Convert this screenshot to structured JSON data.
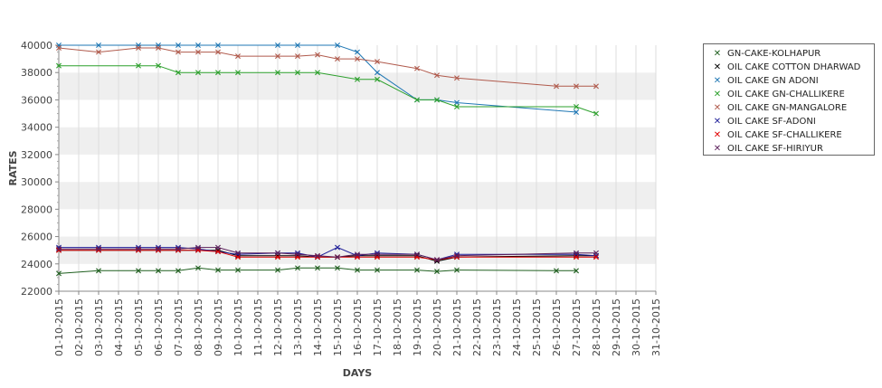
{
  "chart_data": {
    "type": "line",
    "xlabel": "DAYS",
    "ylabel": "RATES",
    "ylim": [
      22000,
      40000
    ],
    "yticks": [
      22000,
      24000,
      26000,
      28000,
      30000,
      32000,
      34000,
      36000,
      38000,
      40000
    ],
    "grid": "horizontal alternating bands",
    "legend_position": "right",
    "categories": [
      "01-10-2015",
      "02-10-2015",
      "03-10-2015",
      "04-10-2015",
      "05-10-2015",
      "06-10-2015",
      "07-10-2015",
      "08-10-2015",
      "09-10-2015",
      "10-10-2015",
      "11-10-2015",
      "12-10-2015",
      "13-10-2015",
      "14-10-2015",
      "15-10-2015",
      "16-10-2015",
      "17-10-2015",
      "18-10-2015",
      "19-10-2015",
      "20-10-2015",
      "21-10-2015",
      "22-10-2015",
      "23-10-2015",
      "24-10-2015",
      "25-10-2015",
      "26-10-2015",
      "27-10-2015",
      "28-10-2015",
      "29-10-2015",
      "30-10-2015",
      "31-10-2015"
    ],
    "series": [
      {
        "name": "GN-CAKE-KOLHAPUR",
        "color": "#1f5f1f",
        "points": [
          [
            1,
            23300
          ],
          [
            3,
            23500
          ],
          [
            5,
            23500
          ],
          [
            6,
            23500
          ],
          [
            7,
            23500
          ],
          [
            8,
            23700
          ],
          [
            9,
            23550
          ],
          [
            10,
            23550
          ],
          [
            12,
            23550
          ],
          [
            13,
            23700
          ],
          [
            14,
            23700
          ],
          [
            15,
            23700
          ],
          [
            16,
            23550
          ],
          [
            17,
            23550
          ],
          [
            19,
            23550
          ],
          [
            20,
            23450
          ],
          [
            21,
            23550
          ],
          [
            26,
            23500
          ],
          [
            27,
            23500
          ]
        ]
      },
      {
        "name": "OIL CAKE COTTON DHARWAD",
        "color": "#000000",
        "points": [
          [
            1,
            25000
          ],
          [
            3,
            25000
          ],
          [
            5,
            25000
          ],
          [
            6,
            25000
          ],
          [
            7,
            25000
          ],
          [
            8,
            25000
          ],
          [
            9,
            25000
          ],
          [
            10,
            24600
          ],
          [
            12,
            24600
          ],
          [
            13,
            24600
          ],
          [
            14,
            24500
          ],
          [
            15,
            24500
          ],
          [
            16,
            24600
          ],
          [
            17,
            24600
          ],
          [
            19,
            24600
          ],
          [
            20,
            24200
          ],
          [
            21,
            24500
          ],
          [
            27,
            24600
          ],
          [
            28,
            24600
          ]
        ]
      },
      {
        "name": "OIL CAKE GN ADONI",
        "color": "#1f77b4",
        "points": [
          [
            1,
            40000
          ],
          [
            3,
            40000
          ],
          [
            5,
            40000
          ],
          [
            6,
            40000
          ],
          [
            7,
            40000
          ],
          [
            8,
            40000
          ],
          [
            9,
            40000
          ],
          [
            12,
            40000
          ],
          [
            13,
            40000
          ],
          [
            15,
            40000
          ],
          [
            16,
            39500
          ],
          [
            17,
            38000
          ],
          [
            19,
            36000
          ],
          [
            20,
            36000
          ],
          [
            21,
            35800
          ],
          [
            27,
            35100
          ]
        ]
      },
      {
        "name": "OIL CAKE GN-CHALLIKERE",
        "color": "#2ca02c",
        "points": [
          [
            1,
            38500
          ],
          [
            5,
            38500
          ],
          [
            6,
            38500
          ],
          [
            7,
            38000
          ],
          [
            8,
            38000
          ],
          [
            9,
            38000
          ],
          [
            10,
            38000
          ],
          [
            12,
            38000
          ],
          [
            13,
            38000
          ],
          [
            14,
            38000
          ],
          [
            16,
            37500
          ],
          [
            17,
            37500
          ],
          [
            19,
            36000
          ],
          [
            20,
            36000
          ],
          [
            21,
            35500
          ],
          [
            27,
            35500
          ],
          [
            28,
            35000
          ]
        ]
      },
      {
        "name": "OIL CAKE GN-MANGALORE",
        "color": "#b05a4c",
        "points": [
          [
            1,
            39800
          ],
          [
            3,
            39500
          ],
          [
            5,
            39800
          ],
          [
            6,
            39800
          ],
          [
            7,
            39500
          ],
          [
            8,
            39500
          ],
          [
            9,
            39500
          ],
          [
            10,
            39200
          ],
          [
            12,
            39200
          ],
          [
            13,
            39200
          ],
          [
            14,
            39300
          ],
          [
            15,
            39000
          ],
          [
            16,
            39000
          ],
          [
            17,
            38800
          ],
          [
            19,
            38300
          ],
          [
            20,
            37800
          ],
          [
            21,
            37600
          ],
          [
            26,
            37000
          ],
          [
            27,
            37000
          ],
          [
            28,
            37000
          ]
        ]
      },
      {
        "name": "OIL CAKE SF-ADONI",
        "color": "#1f1f99",
        "points": [
          [
            1,
            25200
          ],
          [
            3,
            25200
          ],
          [
            5,
            25200
          ],
          [
            6,
            25200
          ],
          [
            7,
            25200
          ],
          [
            8,
            25100
          ],
          [
            9,
            24900
          ],
          [
            10,
            24700
          ],
          [
            12,
            24800
          ],
          [
            13,
            24800
          ],
          [
            14,
            24500
          ],
          [
            15,
            25200
          ],
          [
            16,
            24600
          ],
          [
            17,
            24800
          ],
          [
            19,
            24700
          ],
          [
            20,
            24300
          ],
          [
            21,
            24700
          ],
          [
            27,
            24700
          ],
          [
            28,
            24600
          ]
        ]
      },
      {
        "name": "OIL CAKE SF-CHALLIKERE",
        "color": "#e00000",
        "points": [
          [
            1,
            25000
          ],
          [
            3,
            25000
          ],
          [
            5,
            25000
          ],
          [
            6,
            25000
          ],
          [
            7,
            25000
          ],
          [
            8,
            25000
          ],
          [
            9,
            24900
          ],
          [
            10,
            24500
          ],
          [
            12,
            24500
          ],
          [
            13,
            24500
          ],
          [
            14,
            24500
          ],
          [
            15,
            24500
          ],
          [
            16,
            24500
          ],
          [
            17,
            24500
          ],
          [
            19,
            24500
          ],
          [
            20,
            24300
          ],
          [
            21,
            24500
          ],
          [
            27,
            24500
          ],
          [
            28,
            24500
          ]
        ]
      },
      {
        "name": "OIL CAKE SF-HIRIYUR",
        "color": "#5a1f5a",
        "points": [
          [
            1,
            25100
          ],
          [
            3,
            25100
          ],
          [
            5,
            25100
          ],
          [
            6,
            25100
          ],
          [
            7,
            25100
          ],
          [
            8,
            25200
          ],
          [
            9,
            25200
          ],
          [
            10,
            24800
          ],
          [
            12,
            24800
          ],
          [
            13,
            24700
          ],
          [
            14,
            24600
          ],
          [
            15,
            24500
          ],
          [
            16,
            24700
          ],
          [
            17,
            24700
          ],
          [
            19,
            24700
          ],
          [
            20,
            24300
          ],
          [
            21,
            24600
          ],
          [
            27,
            24800
          ],
          [
            28,
            24800
          ]
        ]
      }
    ]
  }
}
